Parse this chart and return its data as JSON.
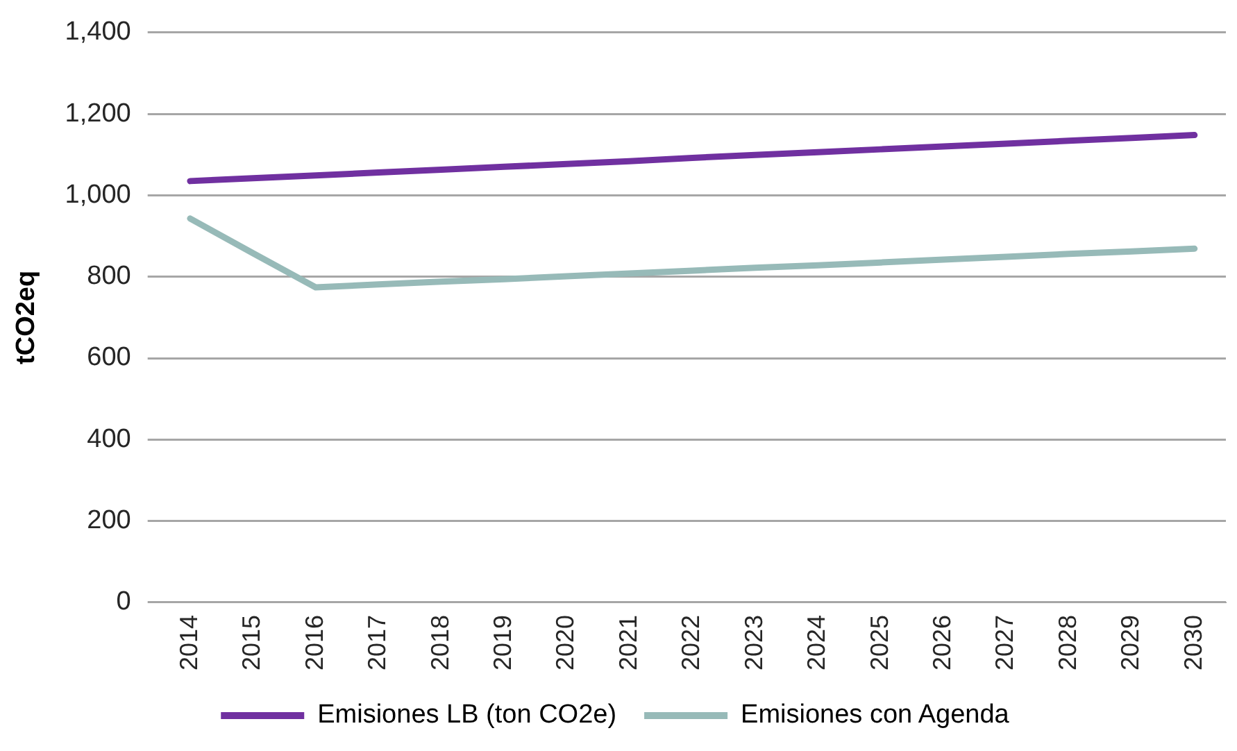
{
  "chart_data": {
    "type": "line",
    "ylabel": "tCO2eq",
    "categories": [
      "2014",
      "2015",
      "2016",
      "2017",
      "2018",
      "2019",
      "2020",
      "2021",
      "2022",
      "2023",
      "2024",
      "2025",
      "2026",
      "2027",
      "2028",
      "2029",
      "2030"
    ],
    "series": [
      {
        "name": "Emisiones LB (ton CO2e)",
        "color": "#7030a0",
        "values": [
          1035,
          1042,
          1049,
          1056,
          1063,
          1070,
          1077,
          1084,
          1092,
          1099,
          1106,
          1113,
          1120,
          1127,
          1134,
          1141,
          1148
        ]
      },
      {
        "name": "Emisiones con Agenda",
        "color": "#97bab8",
        "values": [
          943,
          858,
          774,
          781,
          788,
          794,
          801,
          808,
          815,
          822,
          828,
          835,
          842,
          849,
          856,
          862,
          869
        ]
      }
    ],
    "ylim": [
      0,
      1400
    ],
    "yticks": [
      0,
      200,
      400,
      600,
      800,
      {
        "value": 1000,
        "label": "1,000"
      },
      {
        "value": 1200,
        "label": "1,200"
      },
      {
        "value": 1400,
        "label": "1,400"
      }
    ],
    "grid": "y",
    "legend": "bottom",
    "marker": "none",
    "line_style": "solid"
  }
}
